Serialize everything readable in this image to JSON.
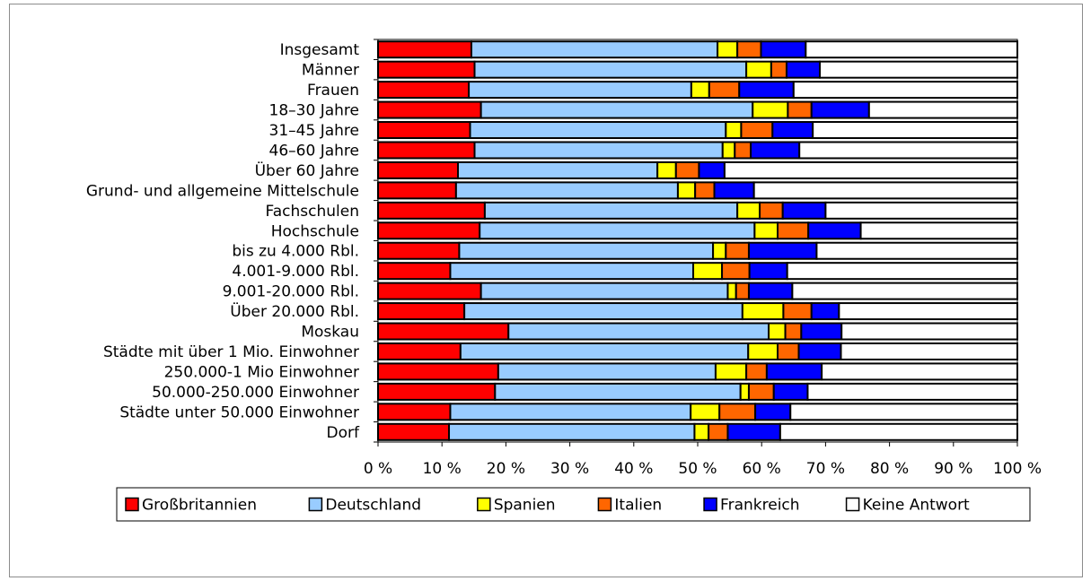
{
  "chart_data": {
    "type": "bar",
    "orientation": "horizontal",
    "stacked": true,
    "categories": [
      "Insgesamt",
      "Männer",
      "Frauen",
      "18–30 Jahre",
      "31–45 Jahre",
      "46–60 Jahre",
      "Über 60 Jahre",
      "Grund- und allgemeine Mittelschule",
      "Fachschulen",
      "Hochschule",
      "bis zu 4.000 Rbl.",
      "4.001-9.000 Rbl.",
      "9.001-20.000 Rbl.",
      "Über 20.000 Rbl.",
      "Moskau",
      "Städte mit über 1 Mio. Einwohner",
      "250.000-1 Mio Einwohner",
      "50.000-250.000 Einwohner",
      "Städte unter 50.000 Einwohner",
      "Dorf"
    ],
    "series": [
      {
        "name": "Großbritannien",
        "color": "#ff0000",
        "values": [
          14.6,
          15.1,
          14.2,
          16.1,
          14.4,
          15.1,
          12.5,
          12.2,
          16.7,
          15.9,
          12.7,
          11.3,
          16.1,
          13.5,
          20.4,
          12.9,
          18.8,
          18.3,
          11.3,
          11.1
        ]
      },
      {
        "name": "Deutschland",
        "color": "#99ccff",
        "values": [
          38.5,
          42.5,
          34.8,
          42.5,
          40.0,
          38.8,
          31.2,
          34.7,
          39.5,
          43.0,
          39.7,
          38.0,
          38.6,
          43.5,
          40.7,
          45.0,
          34.0,
          38.4,
          37.6,
          38.4
        ]
      },
      {
        "name": "Spanien",
        "color": "#ffff00",
        "values": [
          3.1,
          3.9,
          2.8,
          5.5,
          2.4,
          1.9,
          2.9,
          2.7,
          3.5,
          3.6,
          2.0,
          4.5,
          1.3,
          6.4,
          2.6,
          4.6,
          4.8,
          1.3,
          4.5,
          2.2
        ]
      },
      {
        "name": "Italien",
        "color": "#ff6600",
        "values": [
          3.7,
          2.4,
          4.7,
          3.7,
          4.9,
          2.5,
          3.6,
          3.0,
          3.6,
          4.8,
          3.6,
          4.3,
          2.0,
          4.4,
          2.5,
          3.3,
          3.2,
          3.9,
          5.6,
          3.0
        ]
      },
      {
        "name": "Frankreich",
        "color": "#0000ff",
        "values": [
          7.0,
          5.2,
          8.5,
          9.0,
          6.3,
          7.6,
          4.0,
          6.2,
          6.7,
          8.2,
          10.6,
          5.9,
          6.8,
          4.3,
          6.3,
          6.6,
          8.6,
          5.3,
          5.5,
          8.2
        ]
      },
      {
        "name": "Keine Antwort",
        "color": "#ffffff",
        "values": [
          33.1,
          30.9,
          35.0,
          23.2,
          32.0,
          34.1,
          45.8,
          41.2,
          30.0,
          24.5,
          31.4,
          36.0,
          35.2,
          27.9,
          27.5,
          27.6,
          30.6,
          32.8,
          35.5,
          37.1
        ]
      }
    ],
    "xticks": [
      "0 %",
      "10 %",
      "20 %",
      "30 %",
      "40 %",
      "50 %",
      "60 %",
      "70 %",
      "80 %",
      "90 %",
      "100 %"
    ],
    "xlim": [
      0,
      100
    ],
    "grid": false,
    "legend_position": "bottom"
  }
}
